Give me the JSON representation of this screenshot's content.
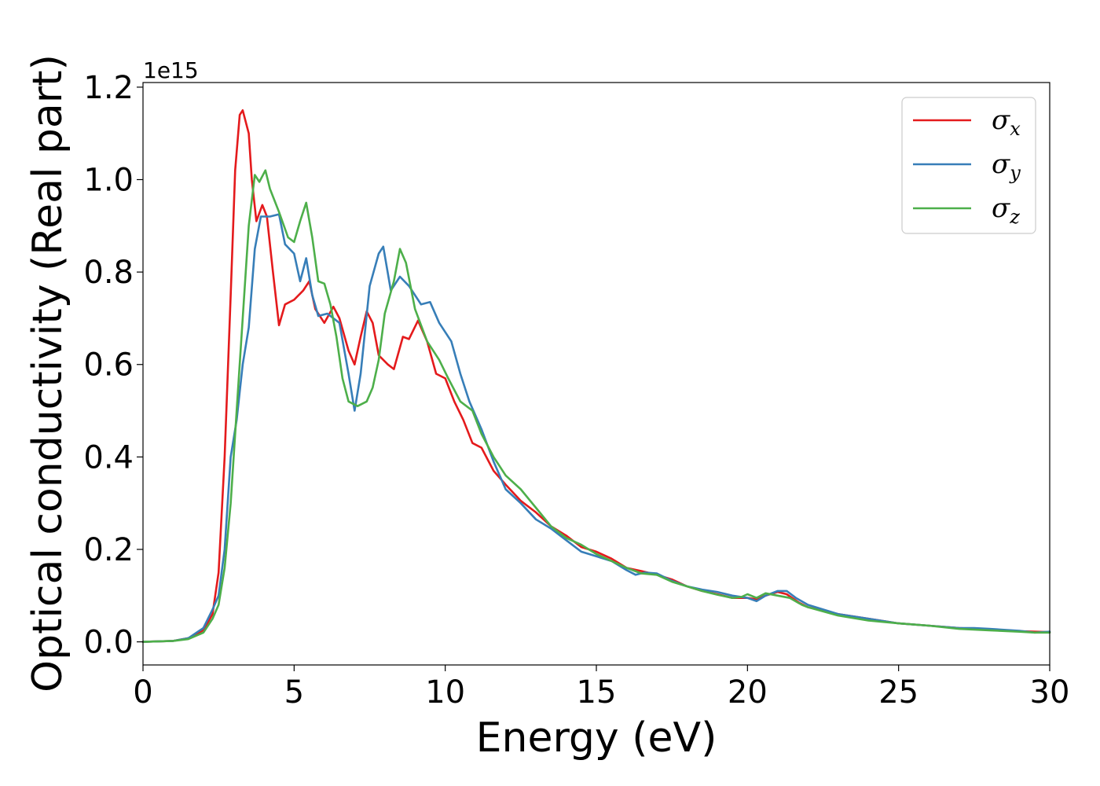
{
  "chart_data": {
    "type": "line",
    "xlabel": "Energy (eV)",
    "ylabel": "Optical conductivity (Real part)",
    "y_offset_label": "1e15",
    "xlim": [
      0,
      30
    ],
    "ylim": [
      -0.05,
      1.21
    ],
    "x_ticks": [
      0,
      5,
      10,
      15,
      20,
      25,
      30
    ],
    "x_tick_labels": [
      "0",
      "5",
      "10",
      "15",
      "20",
      "25",
      "30"
    ],
    "y_ticks": [
      0.0,
      0.2,
      0.4,
      0.6,
      0.8,
      1.0,
      1.2
    ],
    "y_tick_labels": [
      "0.0",
      "0.2",
      "0.4",
      "0.6",
      "0.8",
      "1.0",
      "1.2"
    ],
    "grid": false,
    "legend_position": "top-right",
    "series": [
      {
        "name": "σx",
        "legend_base": "σ",
        "legend_sub": "x",
        "color": "#e41a1c",
        "points": [
          [
            0,
            0
          ],
          [
            1,
            0.002
          ],
          [
            1.5,
            0.008
          ],
          [
            2,
            0.025
          ],
          [
            2.3,
            0.06
          ],
          [
            2.5,
            0.15
          ],
          [
            2.7,
            0.4
          ],
          [
            2.9,
            0.75
          ],
          [
            3.05,
            1.02
          ],
          [
            3.2,
            1.14
          ],
          [
            3.3,
            1.15
          ],
          [
            3.5,
            1.1
          ],
          [
            3.6,
            1.0
          ],
          [
            3.75,
            0.91
          ],
          [
            3.95,
            0.945
          ],
          [
            4.1,
            0.92
          ],
          [
            4.3,
            0.8
          ],
          [
            4.5,
            0.685
          ],
          [
            4.7,
            0.73
          ],
          [
            5.0,
            0.74
          ],
          [
            5.3,
            0.76
          ],
          [
            5.5,
            0.78
          ],
          [
            5.7,
            0.72
          ],
          [
            6.0,
            0.69
          ],
          [
            6.3,
            0.725
          ],
          [
            6.5,
            0.7
          ],
          [
            6.8,
            0.63
          ],
          [
            7.0,
            0.6
          ],
          [
            7.2,
            0.66
          ],
          [
            7.4,
            0.715
          ],
          [
            7.6,
            0.69
          ],
          [
            7.8,
            0.62
          ],
          [
            8.1,
            0.6
          ],
          [
            8.3,
            0.59
          ],
          [
            8.6,
            0.66
          ],
          [
            8.8,
            0.655
          ],
          [
            9.1,
            0.695
          ],
          [
            9.4,
            0.65
          ],
          [
            9.7,
            0.58
          ],
          [
            10.0,
            0.57
          ],
          [
            10.3,
            0.52
          ],
          [
            10.6,
            0.48
          ],
          [
            10.9,
            0.43
          ],
          [
            11.2,
            0.42
          ],
          [
            11.6,
            0.37
          ],
          [
            12.0,
            0.34
          ],
          [
            12.5,
            0.305
          ],
          [
            13.0,
            0.28
          ],
          [
            13.5,
            0.25
          ],
          [
            14.0,
            0.23
          ],
          [
            14.5,
            0.205
          ],
          [
            15.0,
            0.195
          ],
          [
            15.5,
            0.18
          ],
          [
            16.0,
            0.16
          ],
          [
            16.5,
            0.153
          ],
          [
            17.0,
            0.145
          ],
          [
            17.5,
            0.135
          ],
          [
            18.0,
            0.12
          ],
          [
            18.5,
            0.11
          ],
          [
            19.0,
            0.103
          ],
          [
            19.5,
            0.095
          ],
          [
            20.0,
            0.095
          ],
          [
            20.3,
            0.092
          ],
          [
            20.6,
            0.1
          ],
          [
            21.0,
            0.108
          ],
          [
            21.3,
            0.103
          ],
          [
            21.7,
            0.085
          ],
          [
            22.0,
            0.075
          ],
          [
            23.0,
            0.06
          ],
          [
            24.0,
            0.05
          ],
          [
            25.0,
            0.04
          ],
          [
            26.0,
            0.035
          ],
          [
            27.0,
            0.03
          ],
          [
            28.0,
            0.027
          ],
          [
            29.0,
            0.023
          ],
          [
            30.0,
            0.021
          ]
        ]
      },
      {
        "name": "σy",
        "legend_base": "σ",
        "legend_sub": "y",
        "color": "#377eb8",
        "points": [
          [
            0,
            0
          ],
          [
            1,
            0.002
          ],
          [
            1.5,
            0.008
          ],
          [
            2,
            0.03
          ],
          [
            2.3,
            0.07
          ],
          [
            2.5,
            0.1
          ],
          [
            2.7,
            0.2
          ],
          [
            2.9,
            0.4
          ],
          [
            3.1,
            0.48
          ],
          [
            3.3,
            0.6
          ],
          [
            3.5,
            0.68
          ],
          [
            3.7,
            0.85
          ],
          [
            3.9,
            0.92
          ],
          [
            4.2,
            0.92
          ],
          [
            4.5,
            0.925
          ],
          [
            4.7,
            0.86
          ],
          [
            5.0,
            0.84
          ],
          [
            5.2,
            0.78
          ],
          [
            5.4,
            0.83
          ],
          [
            5.6,
            0.75
          ],
          [
            5.8,
            0.705
          ],
          [
            6.1,
            0.71
          ],
          [
            6.5,
            0.69
          ],
          [
            6.8,
            0.58
          ],
          [
            7.0,
            0.5
          ],
          [
            7.2,
            0.58
          ],
          [
            7.5,
            0.77
          ],
          [
            7.8,
            0.84
          ],
          [
            7.95,
            0.855
          ],
          [
            8.2,
            0.76
          ],
          [
            8.5,
            0.79
          ],
          [
            8.8,
            0.77
          ],
          [
            9.2,
            0.73
          ],
          [
            9.5,
            0.735
          ],
          [
            9.8,
            0.69
          ],
          [
            10.2,
            0.65
          ],
          [
            10.5,
            0.58
          ],
          [
            10.8,
            0.52
          ],
          [
            11.2,
            0.46
          ],
          [
            11.6,
            0.39
          ],
          [
            12.0,
            0.33
          ],
          [
            12.5,
            0.3
          ],
          [
            13.0,
            0.265
          ],
          [
            13.5,
            0.245
          ],
          [
            14.0,
            0.22
          ],
          [
            14.5,
            0.195
          ],
          [
            15.0,
            0.185
          ],
          [
            15.5,
            0.175
          ],
          [
            16.0,
            0.155
          ],
          [
            16.3,
            0.145
          ],
          [
            16.6,
            0.15
          ],
          [
            17.0,
            0.148
          ],
          [
            17.5,
            0.132
          ],
          [
            18.0,
            0.12
          ],
          [
            18.5,
            0.113
          ],
          [
            19.0,
            0.108
          ],
          [
            19.5,
            0.1
          ],
          [
            20.0,
            0.095
          ],
          [
            20.3,
            0.088
          ],
          [
            20.6,
            0.1
          ],
          [
            21.0,
            0.11
          ],
          [
            21.3,
            0.11
          ],
          [
            21.6,
            0.095
          ],
          [
            22.0,
            0.08
          ],
          [
            23.0,
            0.06
          ],
          [
            24.0,
            0.05
          ],
          [
            25.0,
            0.04
          ],
          [
            26.0,
            0.035
          ],
          [
            27.0,
            0.03
          ],
          [
            27.5,
            0.03
          ],
          [
            28.0,
            0.028
          ],
          [
            29.0,
            0.024
          ],
          [
            29.5,
            0.02
          ],
          [
            30.0,
            0.022
          ]
        ]
      },
      {
        "name": "σz",
        "legend_base": "σ",
        "legend_sub": "z",
        "color": "#4daf4a",
        "points": [
          [
            0,
            0
          ],
          [
            1,
            0.002
          ],
          [
            1.5,
            0.006
          ],
          [
            2,
            0.02
          ],
          [
            2.3,
            0.05
          ],
          [
            2.5,
            0.08
          ],
          [
            2.7,
            0.16
          ],
          [
            2.9,
            0.3
          ],
          [
            3.1,
            0.5
          ],
          [
            3.3,
            0.7
          ],
          [
            3.5,
            0.9
          ],
          [
            3.7,
            1.01
          ],
          [
            3.85,
            0.995
          ],
          [
            4.05,
            1.02
          ],
          [
            4.2,
            0.98
          ],
          [
            4.5,
            0.93
          ],
          [
            4.8,
            0.875
          ],
          [
            5.0,
            0.865
          ],
          [
            5.2,
            0.91
          ],
          [
            5.4,
            0.95
          ],
          [
            5.6,
            0.875
          ],
          [
            5.8,
            0.78
          ],
          [
            6.0,
            0.775
          ],
          [
            6.2,
            0.73
          ],
          [
            6.4,
            0.66
          ],
          [
            6.6,
            0.57
          ],
          [
            6.8,
            0.52
          ],
          [
            7.1,
            0.51
          ],
          [
            7.4,
            0.52
          ],
          [
            7.6,
            0.55
          ],
          [
            7.8,
            0.61
          ],
          [
            8.0,
            0.71
          ],
          [
            8.3,
            0.78
          ],
          [
            8.5,
            0.85
          ],
          [
            8.7,
            0.82
          ],
          [
            9.0,
            0.72
          ],
          [
            9.4,
            0.65
          ],
          [
            9.8,
            0.61
          ],
          [
            10.1,
            0.57
          ],
          [
            10.5,
            0.52
          ],
          [
            10.9,
            0.5
          ],
          [
            11.2,
            0.45
          ],
          [
            11.6,
            0.4
          ],
          [
            12.0,
            0.36
          ],
          [
            12.5,
            0.33
          ],
          [
            13.0,
            0.29
          ],
          [
            13.5,
            0.25
          ],
          [
            14.0,
            0.225
          ],
          [
            14.5,
            0.21
          ],
          [
            15.0,
            0.19
          ],
          [
            15.5,
            0.175
          ],
          [
            16.0,
            0.16
          ],
          [
            16.5,
            0.148
          ],
          [
            17.0,
            0.145
          ],
          [
            17.5,
            0.13
          ],
          [
            18.0,
            0.12
          ],
          [
            18.5,
            0.11
          ],
          [
            19.0,
            0.102
          ],
          [
            19.5,
            0.095
          ],
          [
            19.8,
            0.097
          ],
          [
            20.0,
            0.103
          ],
          [
            20.3,
            0.095
          ],
          [
            20.6,
            0.105
          ],
          [
            21.0,
            0.1
          ],
          [
            21.4,
            0.095
          ],
          [
            21.8,
            0.08
          ],
          [
            22.0,
            0.075
          ],
          [
            23.0,
            0.057
          ],
          [
            24.0,
            0.046
          ],
          [
            25.0,
            0.04
          ],
          [
            26.0,
            0.035
          ],
          [
            27.0,
            0.028
          ],
          [
            28.0,
            0.025
          ],
          [
            29.0,
            0.022
          ],
          [
            29.5,
            0.02
          ],
          [
            30.0,
            0.02
          ]
        ]
      }
    ]
  }
}
